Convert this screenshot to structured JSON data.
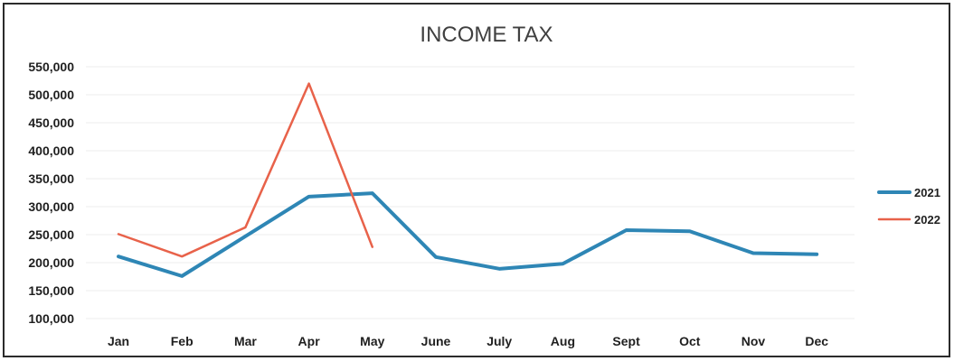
{
  "chart_data": {
    "type": "line",
    "title": "INCOME TAX",
    "categories": [
      "Jan",
      "Feb",
      "Mar",
      "Apr",
      "May",
      "June",
      "July",
      "Aug",
      "Sept",
      "Oct",
      "Nov",
      "Dec"
    ],
    "y_ticks": [
      "550,000",
      "500,000",
      "450,000",
      "400,000",
      "350,000",
      "300,000",
      "250,000",
      "200,000",
      "150,000",
      "100,000"
    ],
    "ylim": [
      100000,
      550000
    ],
    "grid": true,
    "legend_position": "right",
    "series": [
      {
        "name": "2021",
        "color": "#2e86b5",
        "values": [
          211000,
          176000,
          247000,
          318000,
          324000,
          210000,
          189000,
          198000,
          258000,
          256000,
          217000,
          215000
        ]
      },
      {
        "name": "2022",
        "color": "#e8624a",
        "values": [
          251000,
          211000,
          263000,
          520000,
          228000,
          null,
          null,
          null,
          null,
          null,
          null,
          null
        ]
      }
    ]
  }
}
